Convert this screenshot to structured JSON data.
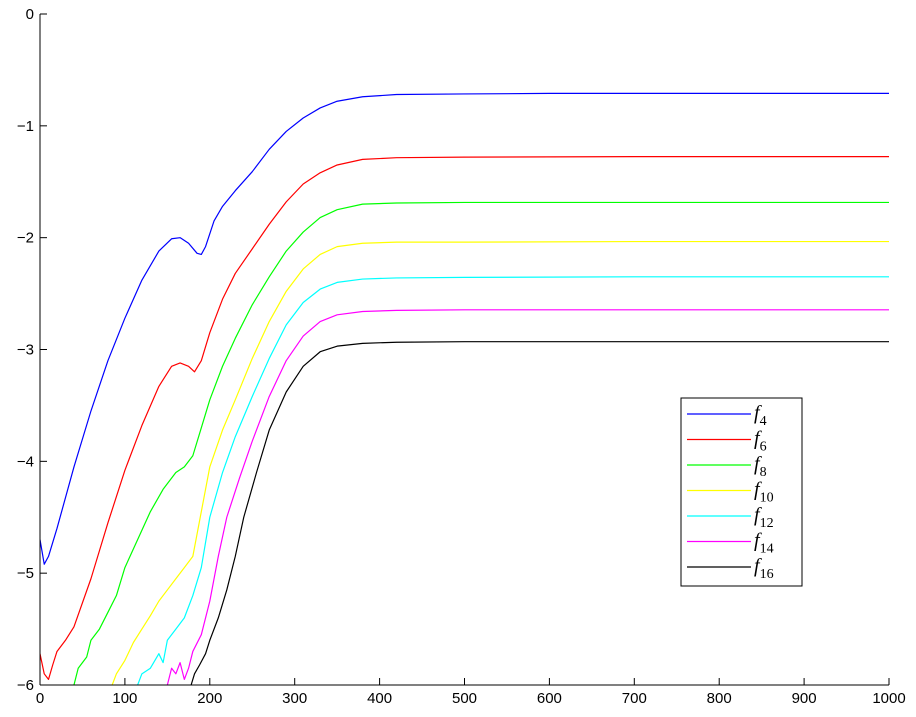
{
  "chart_data": {
    "type": "line",
    "title": "",
    "xlabel": "",
    "ylabel": "",
    "xlim": [
      0,
      1000
    ],
    "ylim": [
      -6,
      0
    ],
    "xticks": [
      0,
      100,
      200,
      300,
      400,
      500,
      600,
      700,
      800,
      900,
      1000
    ],
    "yticks": [
      -6,
      -5,
      -4,
      -3,
      -2,
      -1,
      0
    ],
    "grid": false,
    "legend_position": "lower-right",
    "series": [
      {
        "name": "f",
        "subscript": "4",
        "color": "#0000ff",
        "points": [
          [
            0,
            -4.7
          ],
          [
            5,
            -4.92
          ],
          [
            10,
            -4.85
          ],
          [
            20,
            -4.6
          ],
          [
            40,
            -4.05
          ],
          [
            60,
            -3.55
          ],
          [
            80,
            -3.1
          ],
          [
            100,
            -2.72
          ],
          [
            120,
            -2.38
          ],
          [
            140,
            -2.12
          ],
          [
            155,
            -2.01
          ],
          [
            165,
            -2.0
          ],
          [
            175,
            -2.05
          ],
          [
            185,
            -2.14
          ],
          [
            190,
            -2.15
          ],
          [
            195,
            -2.08
          ],
          [
            205,
            -1.85
          ],
          [
            215,
            -1.72
          ],
          [
            230,
            -1.58
          ],
          [
            250,
            -1.41
          ],
          [
            270,
            -1.21
          ],
          [
            290,
            -1.05
          ],
          [
            310,
            -0.93
          ],
          [
            330,
            -0.84
          ],
          [
            350,
            -0.78
          ],
          [
            380,
            -0.74
          ],
          [
            420,
            -0.72
          ],
          [
            500,
            -0.715
          ],
          [
            600,
            -0.71
          ],
          [
            800,
            -0.71
          ],
          [
            1000,
            -0.71
          ]
        ]
      },
      {
        "name": "f",
        "subscript": "6",
        "color": "#ff0000",
        "points": [
          [
            0,
            -5.72
          ],
          [
            5,
            -5.9
          ],
          [
            10,
            -5.95
          ],
          [
            15,
            -5.82
          ],
          [
            20,
            -5.7
          ],
          [
            30,
            -5.6
          ],
          [
            40,
            -5.48
          ],
          [
            60,
            -5.05
          ],
          [
            80,
            -4.55
          ],
          [
            100,
            -4.08
          ],
          [
            120,
            -3.68
          ],
          [
            140,
            -3.33
          ],
          [
            155,
            -3.15
          ],
          [
            165,
            -3.12
          ],
          [
            175,
            -3.15
          ],
          [
            182,
            -3.2
          ],
          [
            190,
            -3.1
          ],
          [
            200,
            -2.85
          ],
          [
            215,
            -2.55
          ],
          [
            230,
            -2.32
          ],
          [
            250,
            -2.1
          ],
          [
            270,
            -1.88
          ],
          [
            290,
            -1.68
          ],
          [
            310,
            -1.52
          ],
          [
            330,
            -1.42
          ],
          [
            350,
            -1.35
          ],
          [
            380,
            -1.3
          ],
          [
            420,
            -1.285
          ],
          [
            500,
            -1.28
          ],
          [
            700,
            -1.275
          ],
          [
            1000,
            -1.275
          ]
        ]
      },
      {
        "name": "f",
        "subscript": "8",
        "color": "#00ff00",
        "points": [
          [
            40,
            -6.0
          ],
          [
            45,
            -5.85
          ],
          [
            55,
            -5.75
          ],
          [
            60,
            -5.6
          ],
          [
            70,
            -5.5
          ],
          [
            80,
            -5.35
          ],
          [
            90,
            -5.2
          ],
          [
            100,
            -4.95
          ],
          [
            115,
            -4.7
          ],
          [
            130,
            -4.45
          ],
          [
            145,
            -4.25
          ],
          [
            160,
            -4.1
          ],
          [
            170,
            -4.05
          ],
          [
            180,
            -3.95
          ],
          [
            190,
            -3.7
          ],
          [
            200,
            -3.45
          ],
          [
            215,
            -3.15
          ],
          [
            230,
            -2.9
          ],
          [
            250,
            -2.6
          ],
          [
            270,
            -2.35
          ],
          [
            290,
            -2.12
          ],
          [
            310,
            -1.95
          ],
          [
            330,
            -1.82
          ],
          [
            350,
            -1.75
          ],
          [
            380,
            -1.7
          ],
          [
            420,
            -1.69
          ],
          [
            500,
            -1.685
          ],
          [
            700,
            -1.685
          ],
          [
            1000,
            -1.685
          ]
        ]
      },
      {
        "name": "f",
        "subscript": "10",
        "color": "#ffff00",
        "points": [
          [
            85,
            -6.0
          ],
          [
            90,
            -5.9
          ],
          [
            100,
            -5.78
          ],
          [
            110,
            -5.62
          ],
          [
            120,
            -5.5
          ],
          [
            130,
            -5.38
          ],
          [
            140,
            -5.25
          ],
          [
            150,
            -5.15
          ],
          [
            160,
            -5.05
          ],
          [
            170,
            -4.95
          ],
          [
            180,
            -4.85
          ],
          [
            190,
            -4.45
          ],
          [
            200,
            -4.05
          ],
          [
            215,
            -3.72
          ],
          [
            230,
            -3.45
          ],
          [
            250,
            -3.08
          ],
          [
            270,
            -2.75
          ],
          [
            290,
            -2.48
          ],
          [
            310,
            -2.28
          ],
          [
            330,
            -2.15
          ],
          [
            350,
            -2.08
          ],
          [
            380,
            -2.05
          ],
          [
            420,
            -2.04
          ],
          [
            500,
            -2.04
          ],
          [
            700,
            -2.035
          ],
          [
            1000,
            -2.035
          ]
        ]
      },
      {
        "name": "f",
        "subscript": "12",
        "color": "#00ffff",
        "points": [
          [
            115,
            -6.0
          ],
          [
            120,
            -5.9
          ],
          [
            130,
            -5.85
          ],
          [
            140,
            -5.72
          ],
          [
            145,
            -5.8
          ],
          [
            150,
            -5.6
          ],
          [
            160,
            -5.5
          ],
          [
            170,
            -5.4
          ],
          [
            180,
            -5.2
          ],
          [
            190,
            -4.95
          ],
          [
            200,
            -4.5
          ],
          [
            215,
            -4.1
          ],
          [
            230,
            -3.78
          ],
          [
            250,
            -3.42
          ],
          [
            270,
            -3.08
          ],
          [
            290,
            -2.78
          ],
          [
            310,
            -2.58
          ],
          [
            330,
            -2.46
          ],
          [
            350,
            -2.4
          ],
          [
            380,
            -2.37
          ],
          [
            420,
            -2.36
          ],
          [
            500,
            -2.355
          ],
          [
            700,
            -2.35
          ],
          [
            1000,
            -2.35
          ]
        ]
      },
      {
        "name": "f",
        "subscript": "14",
        "color": "#ff00ff",
        "points": [
          [
            150,
            -6.0
          ],
          [
            155,
            -5.85
          ],
          [
            160,
            -5.9
          ],
          [
            165,
            -5.8
          ],
          [
            170,
            -5.95
          ],
          [
            175,
            -5.85
          ],
          [
            180,
            -5.7
          ],
          [
            190,
            -5.55
          ],
          [
            200,
            -5.25
          ],
          [
            210,
            -4.85
          ],
          [
            220,
            -4.5
          ],
          [
            235,
            -4.15
          ],
          [
            250,
            -3.82
          ],
          [
            270,
            -3.42
          ],
          [
            290,
            -3.1
          ],
          [
            310,
            -2.88
          ],
          [
            330,
            -2.75
          ],
          [
            350,
            -2.69
          ],
          [
            380,
            -2.66
          ],
          [
            420,
            -2.65
          ],
          [
            500,
            -2.645
          ],
          [
            700,
            -2.645
          ],
          [
            1000,
            -2.645
          ]
        ]
      },
      {
        "name": "f",
        "subscript": "16",
        "color": "#000000",
        "points": [
          [
            178,
            -6.0
          ],
          [
            182,
            -5.9
          ],
          [
            188,
            -5.82
          ],
          [
            195,
            -5.72
          ],
          [
            200,
            -5.6
          ],
          [
            210,
            -5.4
          ],
          [
            220,
            -5.15
          ],
          [
            230,
            -4.85
          ],
          [
            240,
            -4.5
          ],
          [
            255,
            -4.1
          ],
          [
            270,
            -3.72
          ],
          [
            290,
            -3.38
          ],
          [
            310,
            -3.15
          ],
          [
            330,
            -3.02
          ],
          [
            350,
            -2.97
          ],
          [
            380,
            -2.945
          ],
          [
            420,
            -2.935
          ],
          [
            500,
            -2.93
          ],
          [
            700,
            -2.93
          ],
          [
            1000,
            -2.93
          ]
        ]
      }
    ]
  }
}
